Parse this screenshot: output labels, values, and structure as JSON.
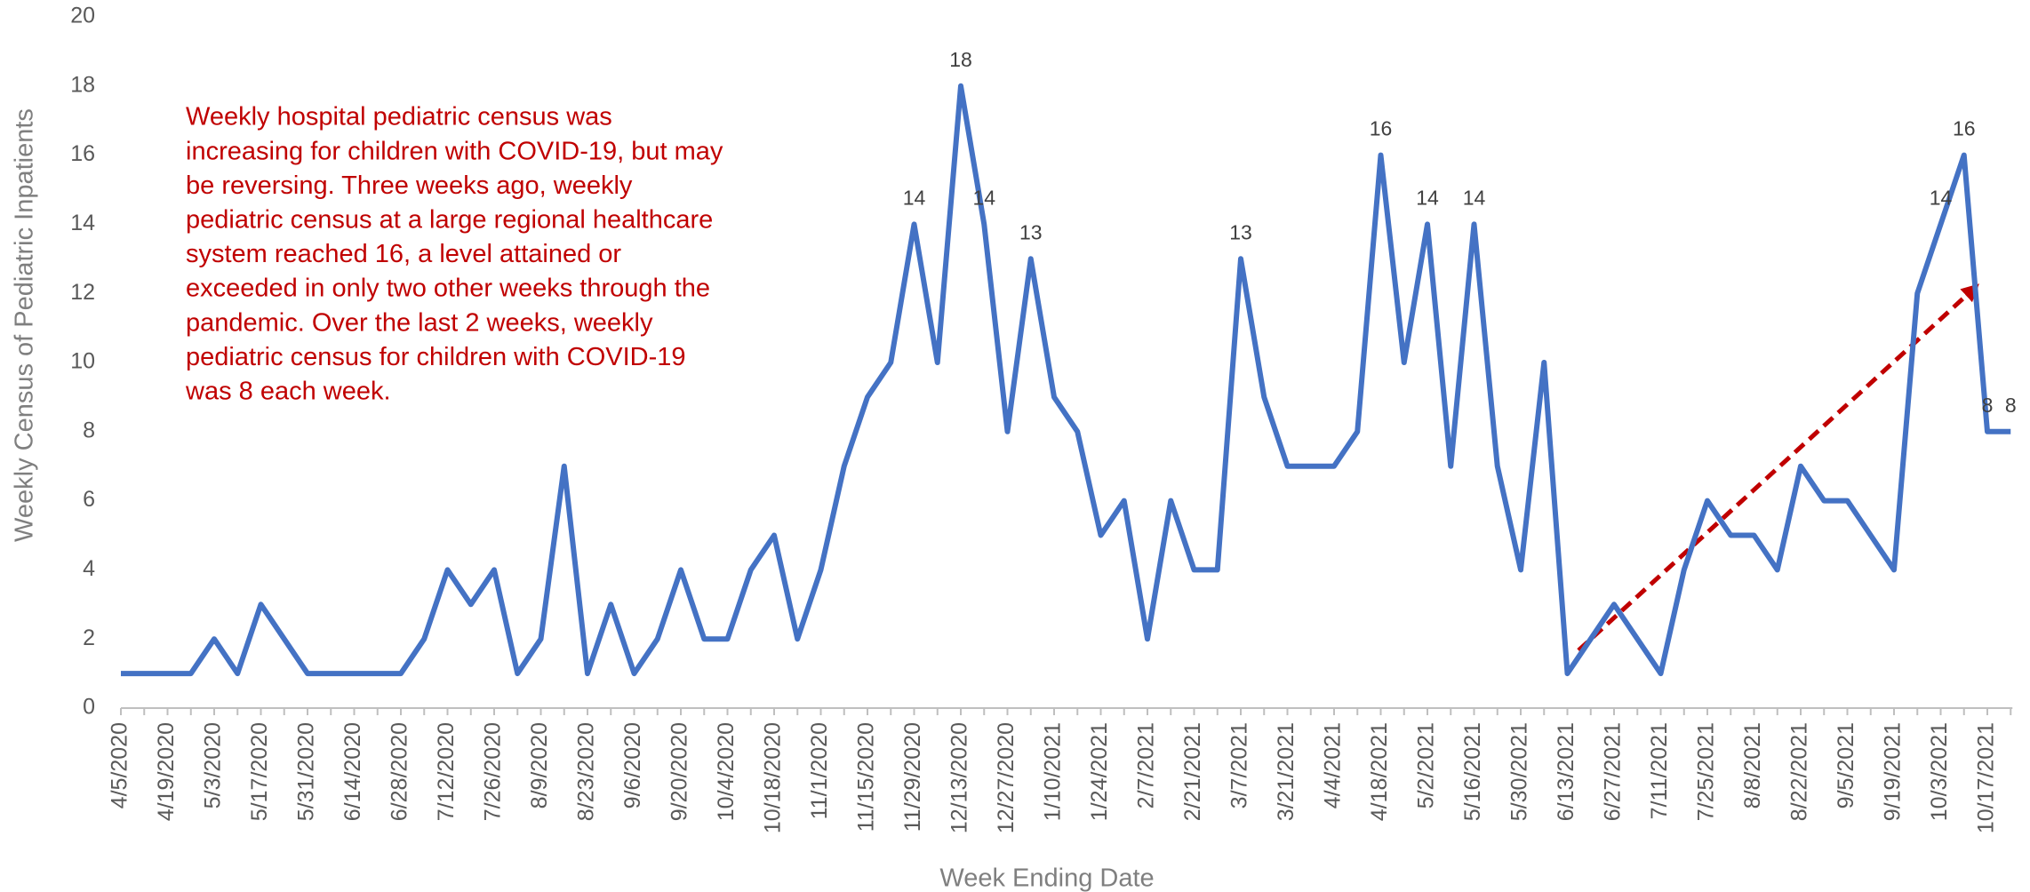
{
  "chart_data": {
    "type": "line",
    "annotation": [
      "Weekly hospital pediatric census was",
      "increasing for children with COVID-19, but may",
      "be reversing. Three weeks ago, weekly",
      "pediatric census at a large regional healthcare",
      "system reached 16, a level attained or",
      "exceeded in only two other weeks through the",
      "pandemic.  Over the last 2 weeks, weekly",
      "pediatric census for children with COVID-19",
      "was 8 each week."
    ],
    "x_label": "Week Ending Date",
    "y_label": "Weekly Census of Pediatric Inpatients",
    "categories": [
      "4/5/2020",
      null,
      "4/19/2020",
      null,
      "5/3/2020",
      null,
      "5/17/2020",
      null,
      "5/31/2020",
      null,
      "6/14/2020",
      null,
      "6/28/2020",
      null,
      "7/12/2020",
      null,
      "7/26/2020",
      null,
      "8/9/2020",
      null,
      "8/23/2020",
      null,
      "9/6/2020",
      null,
      "9/20/2020",
      null,
      "10/4/2020",
      null,
      "10/18/2020",
      null,
      "11/1/2020",
      null,
      "11/15/2020",
      null,
      "11/29/2020",
      null,
      "12/13/2020",
      null,
      "12/27/2020",
      null,
      "1/10/2021",
      null,
      "1/24/2021",
      null,
      "2/7/2021",
      null,
      "2/21/2021",
      null,
      "3/7/2021",
      null,
      "3/21/2021",
      null,
      "4/4/2021",
      null,
      "4/18/2021",
      null,
      "5/2/2021",
      null,
      "5/16/2021",
      null,
      "5/30/2021",
      null,
      "6/13/2021",
      null,
      "6/27/2021",
      null,
      "7/11/2021",
      null,
      "7/25/2021",
      null,
      "8/8/2021",
      null,
      "8/22/2021",
      null,
      "9/5/2021",
      null,
      "9/19/2021",
      null,
      "10/3/2021",
      null,
      "10/17/2021",
      null
    ],
    "values": [
      1,
      1,
      1,
      1,
      2,
      1,
      3,
      2,
      1,
      1,
      1,
      1,
      1,
      2,
      4,
      3,
      4,
      1,
      2,
      7,
      1,
      3,
      1,
      2,
      4,
      2,
      2,
      4,
      5,
      2,
      4,
      7,
      9,
      10,
      14,
      10,
      18,
      14,
      8,
      13,
      9,
      8,
      5,
      6,
      2,
      6,
      4,
      4,
      13,
      9,
      7,
      7,
      7,
      8,
      16,
      10,
      14,
      7,
      14,
      7,
      4,
      10,
      1,
      2,
      3,
      2,
      1,
      4,
      6,
      5,
      5,
      4,
      7,
      6,
      6,
      5,
      4,
      12,
      14,
      16,
      8,
      8
    ],
    "value_labels": [
      null,
      null,
      null,
      null,
      null,
      null,
      null,
      null,
      null,
      null,
      null,
      null,
      null,
      null,
      null,
      null,
      null,
      null,
      null,
      null,
      null,
      null,
      null,
      null,
      null,
      null,
      null,
      null,
      null,
      null,
      null,
      null,
      null,
      null,
      "14",
      null,
      "18",
      "14",
      null,
      "13",
      null,
      null,
      null,
      null,
      null,
      null,
      null,
      null,
      "13",
      null,
      null,
      null,
      null,
      null,
      "16",
      null,
      "14",
      null,
      "14",
      null,
      null,
      null,
      null,
      null,
      null,
      null,
      null,
      null,
      null,
      null,
      null,
      null,
      null,
      null,
      null,
      null,
      null,
      null,
      "14",
      "16",
      "8",
      "8"
    ],
    "color": "#4472c4",
    "ylim": [
      0,
      20
    ],
    "yticks": [
      0,
      2,
      4,
      6,
      8,
      10,
      12,
      14,
      16,
      18,
      20
    ],
    "grid": false
  }
}
